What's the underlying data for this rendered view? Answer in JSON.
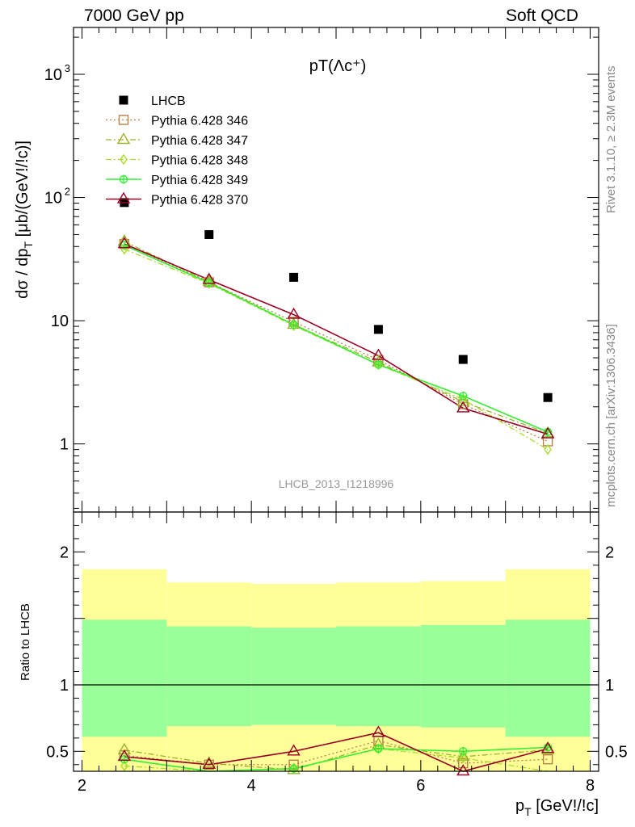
{
  "header": {
    "left": "7000 GeV pp",
    "right": "Soft QCD"
  },
  "side_labels": {
    "rivet": "Rivet 3.1.10, ≥ 2.3M events",
    "mcplots": "mcplots.cern.ch [arXiv:1306.3436]"
  },
  "watermark": "LHCB_2013_I1218996",
  "chart_data": [
    {
      "type": "scatter",
      "title": "pT(Λc⁺)",
      "ylabel": "dσ / dp_T [μb/(GeV!/!c)]",
      "yscale": "log",
      "ylim": [
        0.28,
        2400
      ],
      "xlim": [
        1.9,
        8.1
      ],
      "y_ticks": [
        "1",
        "10",
        "10²",
        "10³"
      ],
      "legend_position": "top-left",
      "series": [
        {
          "name": "LHCB",
          "color": "#000000",
          "marker": "filled-square",
          "line": "none",
          "x": [
            2.5,
            3.5,
            4.5,
            5.5,
            6.5,
            7.5
          ],
          "y": [
            91,
            50,
            22.5,
            8.5,
            4.85,
            2.38
          ]
        },
        {
          "name": "Pythia 6.428 346",
          "color": "#b8804a",
          "marker": "open-square",
          "line": "dotted",
          "x": [
            2.5,
            3.5,
            4.5,
            5.5,
            6.5,
            7.5
          ],
          "y": [
            42,
            20.5,
            9.8,
            4.8,
            2.1,
            1.05
          ]
        },
        {
          "name": "Pythia 6.428 347",
          "color": "#9ab32a",
          "marker": "open-triangle",
          "line": "dashdot",
          "x": [
            2.5,
            3.5,
            4.5,
            5.5,
            6.5,
            7.5
          ],
          "y": [
            44,
            20.7,
            9.3,
            4.6,
            2.2,
            1.22
          ]
        },
        {
          "name": "Pythia 6.428 348",
          "color": "#a8dc28",
          "marker": "open-diamond",
          "line": "dashdot",
          "x": [
            2.5,
            3.5,
            4.5,
            5.5,
            6.5,
            7.5
          ],
          "y": [
            38,
            20,
            9.1,
            4.4,
            2.3,
            0.9
          ]
        },
        {
          "name": "Pythia 6.428 349",
          "color": "#33ee33",
          "marker": "open-circle-cross",
          "line": "solid",
          "x": [
            2.5,
            3.5,
            4.5,
            5.5,
            6.5,
            7.5
          ],
          "y": [
            41,
            20.3,
            9.3,
            4.4,
            2.45,
            1.25
          ]
        },
        {
          "name": "Pythia 6.428 370",
          "color": "#990022",
          "marker": "open-triangle",
          "line": "solid",
          "x": [
            2.5,
            3.5,
            4.5,
            5.5,
            6.5,
            7.5
          ],
          "y": [
            42,
            21.5,
            11.2,
            5.2,
            1.95,
            1.2
          ]
        }
      ]
    },
    {
      "type": "line",
      "ylabel": "Ratio to LHCB",
      "xlabel": "p_T [GeV!/!c]",
      "xlim": [
        1.9,
        8.1
      ],
      "ylim": [
        0.35,
        2.3
      ],
      "x_ticks": [
        "2",
        "4",
        "6",
        "8"
      ],
      "y_ticks": [
        "0.5",
        "1",
        "2"
      ],
      "bands": [
        {
          "name": "outer",
          "color": "#ffff99",
          "bins": [
            [
              2,
              3,
              0.35,
              1.87
            ],
            [
              3,
              4,
              0.35,
              1.77
            ],
            [
              4,
              5,
              0.35,
              1.76
            ],
            [
              5,
              6,
              0.35,
              1.77
            ],
            [
              6,
              7,
              0.35,
              1.78
            ],
            [
              7,
              8,
              0.35,
              1.87
            ]
          ]
        },
        {
          "name": "inner",
          "color": "#99ff99",
          "bins": [
            [
              2,
              3,
              0.61,
              1.49
            ],
            [
              3,
              4,
              0.69,
              1.44
            ],
            [
              4,
              5,
              0.7,
              1.43
            ],
            [
              5,
              6,
              0.69,
              1.44
            ],
            [
              6,
              7,
              0.68,
              1.45
            ],
            [
              7,
              8,
              0.61,
              1.49
            ]
          ]
        }
      ],
      "series": [
        {
          "name": "Pythia 6.428 346",
          "x": [
            2.5,
            3.5,
            4.5,
            5.5,
            6.5,
            7.5
          ],
          "y": [
            0.47,
            0.4,
            0.4,
            0.58,
            0.41,
            0.44
          ]
        },
        {
          "name": "Pythia 6.428 347",
          "x": [
            2.5,
            3.5,
            4.5,
            5.5,
            6.5,
            7.5
          ],
          "y": [
            0.51,
            0.41,
            0.36,
            0.55,
            0.46,
            0.51
          ]
        },
        {
          "name": "Pythia 6.428 348",
          "x": [
            2.5,
            3.5,
            4.5,
            5.5,
            6.5,
            7.5
          ],
          "y": [
            0.39,
            0.34,
            0.37,
            0.52,
            0.45,
            0.33
          ]
        },
        {
          "name": "Pythia 6.428 349",
          "x": [
            2.5,
            3.5,
            4.5,
            5.5,
            6.5,
            7.5
          ],
          "y": [
            0.44,
            0.34,
            0.37,
            0.52,
            0.5,
            0.53
          ]
        },
        {
          "name": "Pythia 6.428 370",
          "x": [
            2.5,
            3.5,
            4.5,
            5.5,
            6.5,
            7.5
          ],
          "y": [
            0.46,
            0.4,
            0.5,
            0.64,
            0.35,
            0.52
          ]
        }
      ]
    }
  ]
}
